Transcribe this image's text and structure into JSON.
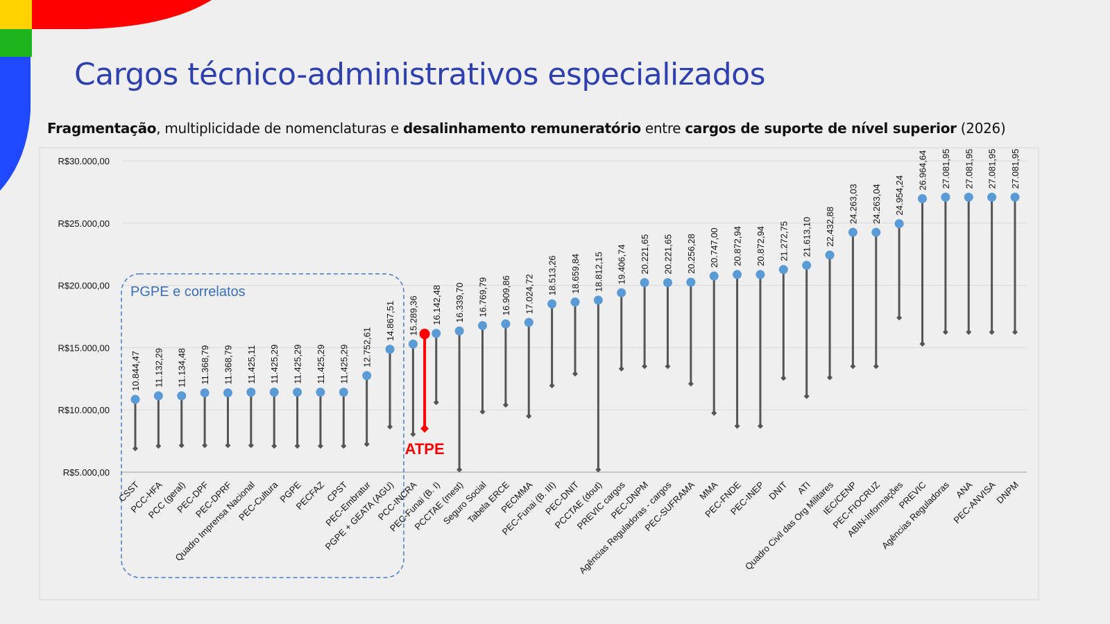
{
  "slide": {
    "title": "Cargos técnico-administrativos especializados",
    "subtitle_parts": [
      {
        "text": "Fragmentação",
        "bold": true
      },
      {
        "text": ", multiplicidade de nomenclaturas e ",
        "bold": false
      },
      {
        "text": "desalinhamento remuneratório",
        "bold": true
      },
      {
        "text": " entre ",
        "bold": false
      },
      {
        "text": "cargos de suporte de nível superior",
        "bold": true
      },
      {
        "text": " (2026)",
        "bold": false
      }
    ],
    "colors": {
      "title": "#2e3fae",
      "deco_yellow": "#ffd200",
      "deco_green": "#1db31d",
      "deco_blue": "#1f48ff",
      "deco_red": "#ff0000"
    }
  },
  "chart_data": {
    "type": "dumbbell",
    "y_tick_labels": [
      "R$5.000,00",
      "R$10.000,00",
      "R$15.000,00",
      "R$20.000,00",
      "R$25.000,00",
      "R$30.000,00"
    ],
    "y_ticks": [
      5000,
      10000,
      15000,
      20000,
      25000,
      30000
    ],
    "ylim": [
      5000,
      30000
    ],
    "grid": true,
    "categories": [
      "CSST",
      "PCC-HFA",
      "PCC (geral)",
      "PEC-DPF",
      "PEC-DPRF",
      "Quadro Imprensa Nacional",
      "PEC-Cultura",
      "PGPE",
      "PECFAZ",
      "CPST",
      "PEC-Embratur",
      "PGPE + GEATA (AGU)",
      "PCC-INCRA",
      "PEC-Funai (B. I)",
      "PCCTAE (mest)",
      "Seguro Social",
      "Tabela ERCE",
      "PECMMA",
      "PEC-Funai (B. III)",
      "PEC-DNIT",
      "PCCTAE (dout)",
      "PREVIC cargos",
      "PEC-DNPM",
      "Agências Reguladoras - cargos",
      "PEC-SUFRAMA",
      "MMA",
      "PEC-FNDE",
      "PEC-INEP",
      "DNIT",
      "ATI",
      "Quadro Civil das Org Militares",
      "IEC/CENP",
      "PEC-FIOCRUZ",
      "ABIN-Informações",
      "PREVIC",
      "Agências Reguladoras",
      "ANA",
      "PEC-ANVISA",
      "DNPM"
    ],
    "max_labels": [
      "10.844,47",
      "11.132,29",
      "11.134,48",
      "11.368,79",
      "11.368,79",
      "11.425,11",
      "11.425,29",
      "11.425,29",
      "11.425,29",
      "11.425,29",
      "12.752,61",
      "14.867,51",
      "15.289,36",
      "16.142,48",
      "16.339,70",
      "16.769,79",
      "16.909,86",
      "17.024,72",
      "18.513,26",
      "18.659,84",
      "18.812,15",
      "19.406,74",
      "20.221,65",
      "20.221,65",
      "20.256,28",
      "20.747,00",
      "20.872,94",
      "20.872,94",
      "21.272,75",
      "21.613,10",
      "22.432,88",
      "24.263,03",
      "24.263,04",
      "24.954,24",
      "26.964,64",
      "27.081,95",
      "27.081,95",
      "27.081,95",
      "27.081,95"
    ],
    "max": [
      10844.47,
      11132.29,
      11134.48,
      11368.79,
      11368.79,
      11425.11,
      11425.29,
      11425.29,
      11425.29,
      11425.29,
      12752.61,
      14867.51,
      15289.36,
      16142.48,
      16339.7,
      16769.79,
      16909.86,
      17024.72,
      18513.26,
      18659.84,
      18812.15,
      19406.74,
      20221.65,
      20221.65,
      20256.28,
      20747.0,
      20872.94,
      20872.94,
      21272.75,
      21613.1,
      22432.88,
      24263.03,
      24263.04,
      24954.24,
      26964.64,
      27081.95,
      27081.95,
      27081.95,
      27081.95
    ],
    "min": [
      6900,
      7100,
      7150,
      7150,
      7150,
      7150,
      7100,
      7100,
      7100,
      7100,
      7250,
      8650,
      8050,
      10600,
      5200,
      9850,
      10400,
      9500,
      11950,
      12900,
      5200,
      13300,
      13500,
      13500,
      12100,
      9750,
      8700,
      8700,
      12550,
      11100,
      12600,
      13500,
      13500,
      17400,
      15300,
      16250,
      16250,
      16250,
      16250
    ],
    "highlight": {
      "label": "ATPE",
      "max": 16100,
      "min": 8500,
      "color": "#ff0000",
      "after_category_index": 12
    },
    "group_box": {
      "label": "PGPE e correlatos",
      "from_index": 0,
      "to_index": 11,
      "color": "#4a78c2"
    },
    "colors": {
      "dot": "#5b9bd5",
      "whisker": "#555555"
    }
  }
}
